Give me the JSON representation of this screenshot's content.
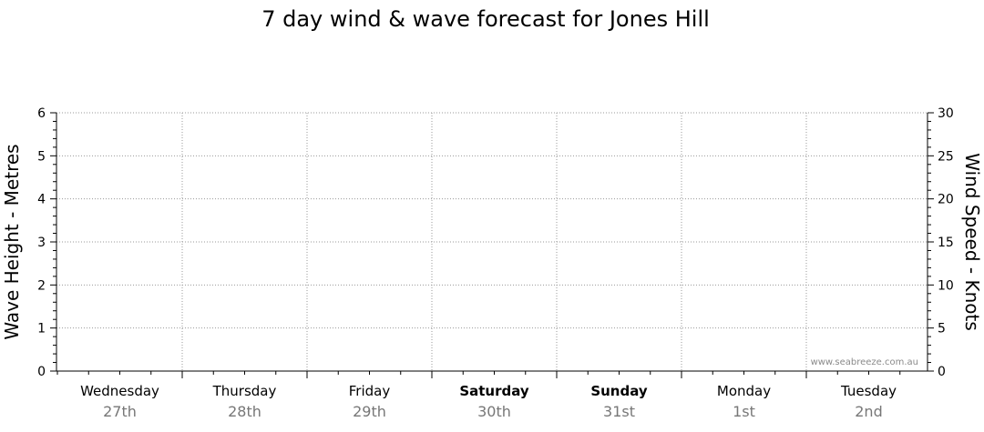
{
  "chart_data": {
    "type": "line",
    "title": "7 day wind & wave forecast for Jones Hill",
    "ylabel_left": "Wave Height - Metres",
    "ylabel_right": "Wind Speed - Knots",
    "ylim_left": [
      0,
      6
    ],
    "ylim_right": [
      0,
      30
    ],
    "yticks_left": [
      "0",
      "1",
      "2",
      "3",
      "4",
      "5",
      "6"
    ],
    "yticks_right": [
      "0",
      "5",
      "10",
      "15",
      "20",
      "25",
      "30"
    ],
    "grid": true,
    "days": [
      {
        "day": "Wednesday",
        "date": "27th",
        "weekend": false
      },
      {
        "day": "Thursday",
        "date": "28th",
        "weekend": false
      },
      {
        "day": "Friday",
        "date": "29th",
        "weekend": false
      },
      {
        "day": "Saturday",
        "date": "30th",
        "weekend": true
      },
      {
        "day": "Sunday",
        "date": "31st",
        "weekend": true
      },
      {
        "day": "Monday",
        "date": "1st",
        "weekend": false
      },
      {
        "day": "Tuesday",
        "date": "2nd",
        "weekend": false
      }
    ],
    "series": []
  },
  "watermark": "www.seabreeze.com.au"
}
